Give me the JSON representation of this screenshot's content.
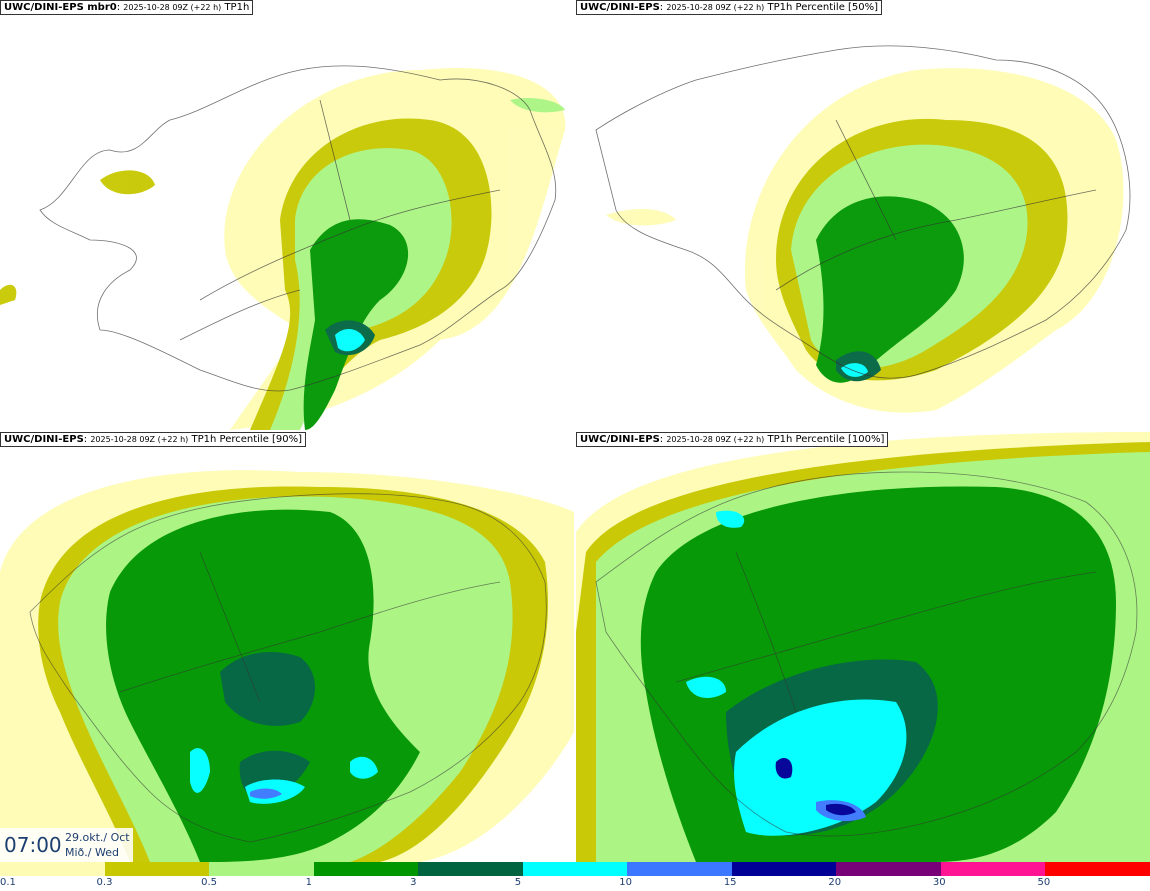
{
  "panels": [
    {
      "model": "UWC/DINI-EPS mbr0",
      "run": "2025-10-28 09Z (+22 h)",
      "param": "TP1h"
    },
    {
      "model": "UWC/DINI-EPS",
      "run": "2025-10-28 09Z (+22 h)",
      "param": "TP1h Percentile [50%]"
    },
    {
      "model": "UWC/DINI-EPS",
      "run": "2025-10-28 09Z (+22 h)",
      "param": "TP1h Percentile [90%]"
    },
    {
      "model": "UWC/DINI-EPS",
      "run": "2025-10-28 09Z (+22 h)",
      "param": "TP1h Percentile [100%]"
    }
  ],
  "valid_time": {
    "time": "07:00",
    "date_line1": "29.okt./ Oct",
    "date_line2": "Mið./ Wed"
  },
  "colorbar": {
    "labels": [
      "0.1",
      "0.3",
      "0.5",
      "1",
      "3",
      "5",
      "10",
      "15",
      "20",
      "30",
      "50"
    ],
    "colors": [
      "#fefcb4",
      "#c8c800",
      "#aaf582",
      "#009600",
      "#006440",
      "#00ffff",
      "#3c78ff",
      "#000096",
      "#780078",
      "#ff1493",
      "#ff0000"
    ]
  }
}
